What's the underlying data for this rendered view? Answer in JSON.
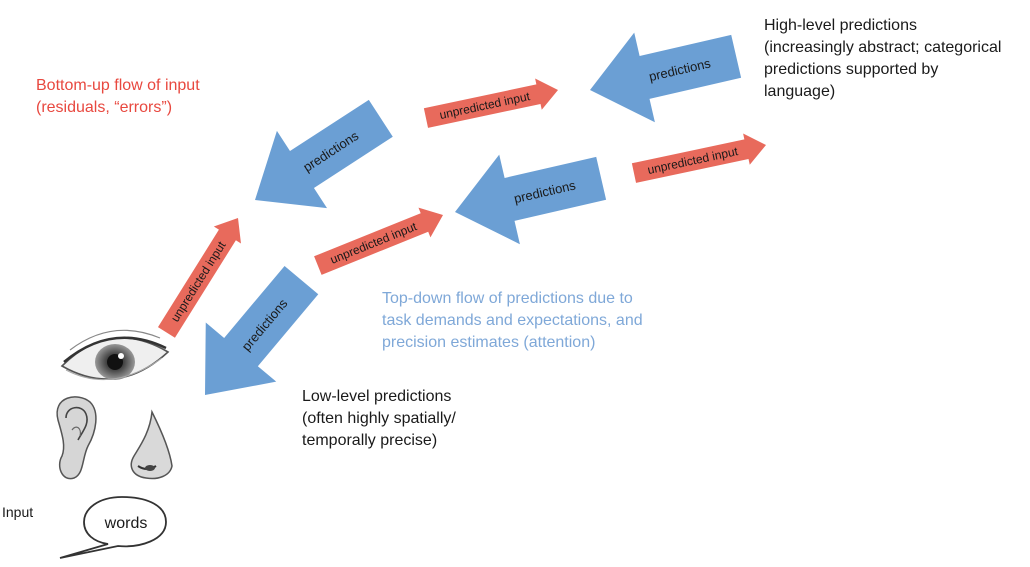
{
  "colors": {
    "prediction_arrow": "#6b9fd4",
    "input_arrow": "#e86a5c",
    "red_text": "#e8483f",
    "blue_text": "#7fa8d8",
    "black_text": "#1a1a1a"
  },
  "arrows": {
    "prediction_label": "predictions",
    "input_label": "unpredicted input"
  },
  "notes": {
    "bottom_up": [
      "Bottom-up flow of input",
      "(residuals, “errors”)"
    ],
    "high_level": [
      "High-level predictions",
      "(increasingly abstract; categorical",
      "predictions supported  by",
      "language)"
    ],
    "top_down": [
      "Top-down flow of predictions due to",
      "task demands and expectations, and",
      "precision estimates (attention)"
    ],
    "low_level": [
      "Low-level predictions",
      "(often highly spatially/",
      "temporally precise)"
    ]
  },
  "input": {
    "label": "Input",
    "bubble_text": "words"
  },
  "icons": {
    "eye": "eye-icon",
    "ear": "ear-icon",
    "nose": "nose-icon",
    "speech": "speech-bubble-icon"
  }
}
